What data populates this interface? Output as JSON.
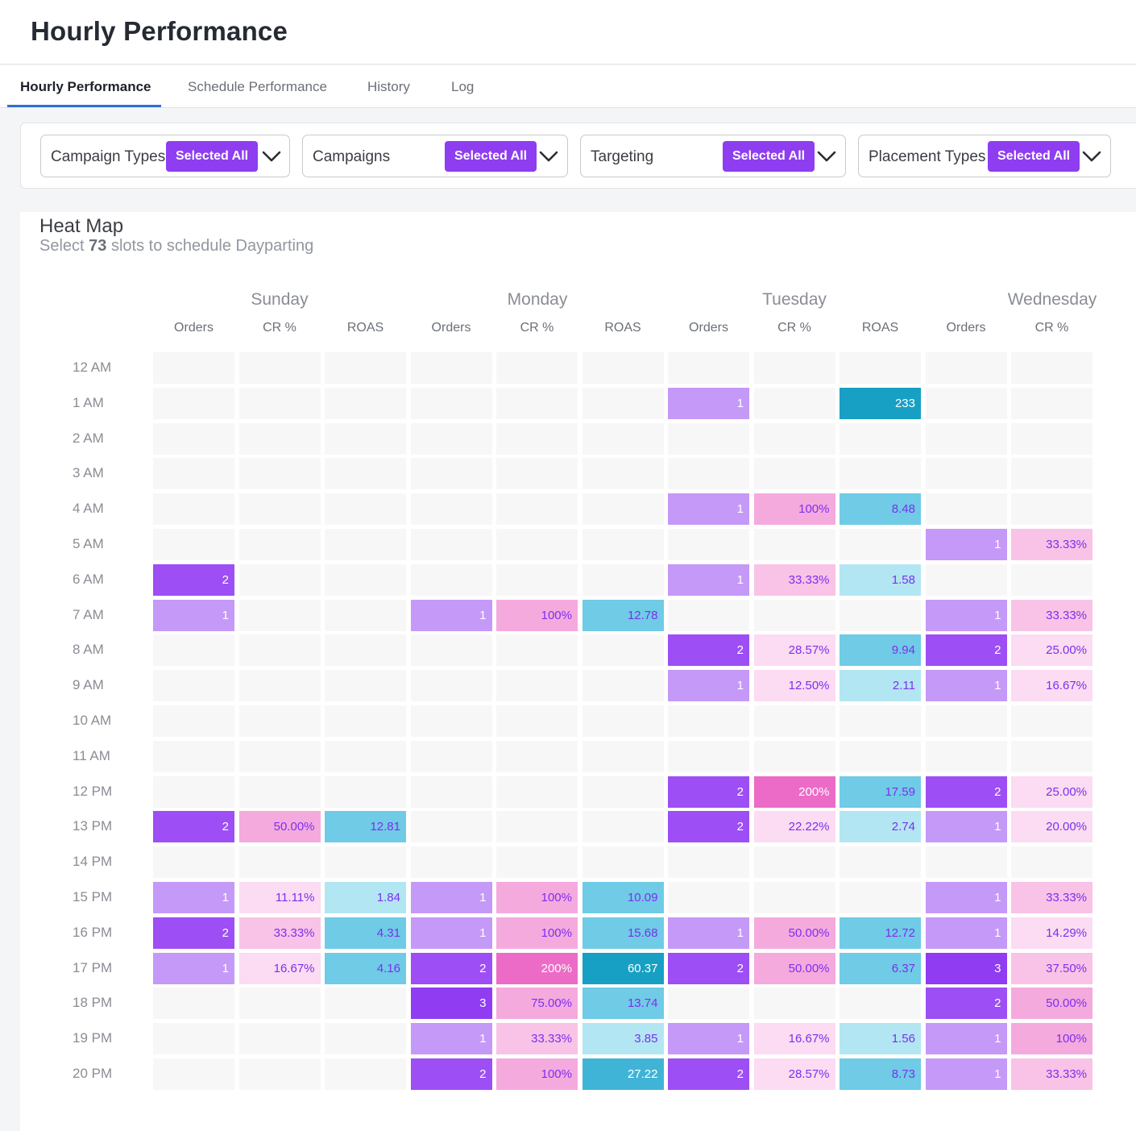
{
  "header": {
    "title": "Hourly Performance"
  },
  "tabs": [
    {
      "label": "Hourly Performance",
      "active": true
    },
    {
      "label": "Schedule Performance",
      "active": false
    },
    {
      "label": "History",
      "active": false
    },
    {
      "label": "Log",
      "active": false
    }
  ],
  "filters": [
    {
      "label": "Campaign Types",
      "selection": "Selected All"
    },
    {
      "label": "Campaigns",
      "selection": "Selected All"
    },
    {
      "label": "Targeting",
      "selection": "Selected All"
    },
    {
      "label": "Placement Types",
      "selection": "Selected All"
    }
  ],
  "heatmap": {
    "title": "Heat Map",
    "subtitle_prefix": "Select ",
    "slot_count": "73",
    "subtitle_suffix": " slots to schedule Dayparting",
    "days": [
      "Sunday",
      "Monday",
      "Tuesday",
      "Wednesday"
    ],
    "columns": [
      {
        "day": "Sunday",
        "metric": "Orders"
      },
      {
        "day": "Sunday",
        "metric": "CR %"
      },
      {
        "day": "Sunday",
        "metric": "ROAS"
      },
      {
        "day": "Monday",
        "metric": "Orders"
      },
      {
        "day": "Monday",
        "metric": "CR %"
      },
      {
        "day": "Monday",
        "metric": "ROAS"
      },
      {
        "day": "Tuesday",
        "metric": "Orders"
      },
      {
        "day": "Tuesday",
        "metric": "CR %"
      },
      {
        "day": "Tuesday",
        "metric": "ROAS"
      },
      {
        "day": "Wednesday",
        "metric": "Orders"
      },
      {
        "day": "Wednesday",
        "metric": "CR %"
      }
    ],
    "hours": [
      "12 AM",
      "1 AM",
      "2 AM",
      "3 AM",
      "4 AM",
      "5 AM",
      "6 AM",
      "7 AM",
      "8 AM",
      "9 AM",
      "10 AM",
      "11 AM",
      "12 PM",
      "13 PM",
      "14 PM",
      "15 PM",
      "16 PM",
      "17 PM",
      "18 PM",
      "19 PM",
      "20 PM"
    ],
    "rows": [
      [
        "",
        "",
        "",
        "",
        "",
        "",
        "",
        "",
        "",
        "",
        ""
      ],
      [
        "",
        "",
        "",
        "",
        "",
        "",
        "1",
        "",
        "233",
        "",
        ""
      ],
      [
        "",
        "",
        "",
        "",
        "",
        "",
        "",
        "",
        "",
        "",
        ""
      ],
      [
        "",
        "",
        "",
        "",
        "",
        "",
        "",
        "",
        "",
        "",
        ""
      ],
      [
        "",
        "",
        "",
        "",
        "",
        "",
        "1",
        "100%",
        "8.48",
        "",
        ""
      ],
      [
        "",
        "",
        "",
        "",
        "",
        "",
        "",
        "",
        "",
        "1",
        "33.33%"
      ],
      [
        "2",
        "",
        "",
        "",
        "",
        "",
        "1",
        "33.33%",
        "1.58",
        "",
        ""
      ],
      [
        "1",
        "",
        "",
        "1",
        "100%",
        "12.78",
        "",
        "",
        "",
        "1",
        "33.33%"
      ],
      [
        "",
        "",
        "",
        "",
        "",
        "",
        "2",
        "28.57%",
        "9.94",
        "2",
        "25.00%"
      ],
      [
        "",
        "",
        "",
        "",
        "",
        "",
        "1",
        "12.50%",
        "2.11",
        "1",
        "16.67%"
      ],
      [
        "",
        "",
        "",
        "",
        "",
        "",
        "",
        "",
        "",
        "",
        ""
      ],
      [
        "",
        "",
        "",
        "",
        "",
        "",
        "",
        "",
        "",
        "",
        ""
      ],
      [
        "",
        "",
        "",
        "",
        "",
        "",
        "2",
        "200%",
        "17.59",
        "2",
        "25.00%"
      ],
      [
        "2",
        "50.00%",
        "12.81",
        "",
        "",
        "",
        "2",
        "22.22%",
        "2.74",
        "1",
        "20.00%"
      ],
      [
        "",
        "",
        "",
        "",
        "",
        "",
        "",
        "",
        "",
        "",
        ""
      ],
      [
        "1",
        "11.11%",
        "1.84",
        "1",
        "100%",
        "10.09",
        "",
        "",
        "",
        "1",
        "33.33%"
      ],
      [
        "2",
        "33.33%",
        "4.31",
        "1",
        "100%",
        "15.68",
        "1",
        "50.00%",
        "12.72",
        "1",
        "14.29%"
      ],
      [
        "1",
        "16.67%",
        "4.16",
        "2",
        "200%",
        "60.37",
        "2",
        "50.00%",
        "6.37",
        "3",
        "37.50%"
      ],
      [
        "",
        "",
        "",
        "3",
        "75.00%",
        "13.74",
        "",
        "",
        "",
        "2",
        "50.00%"
      ],
      [
        "",
        "",
        "",
        "1",
        "33.33%",
        "3.85",
        "1",
        "16.67%",
        "1.56",
        "1",
        "100%"
      ],
      [
        "",
        "",
        "",
        "2",
        "100%",
        "27.22",
        "2",
        "28.57%",
        "8.73",
        "1",
        "33.33%"
      ]
    ],
    "colors": {
      "empty": "#f7f7f8",
      "orders": [
        "#d3b9fb",
        "#c599f8",
        "#b67ff6",
        "#9d4ef4",
        "#8f3cf2"
      ],
      "cr": [
        "#fbdcf2",
        "#f8c3e6",
        "#f5aade",
        "#f08fd3",
        "#ec6bc6"
      ],
      "roas": [
        "#b3e6f3",
        "#93d8ed",
        "#6fcbe6",
        "#40b4d6",
        "#17a0c4"
      ],
      "text_purple": "#7c2ff0",
      "text_white": "#ffffff"
    }
  }
}
